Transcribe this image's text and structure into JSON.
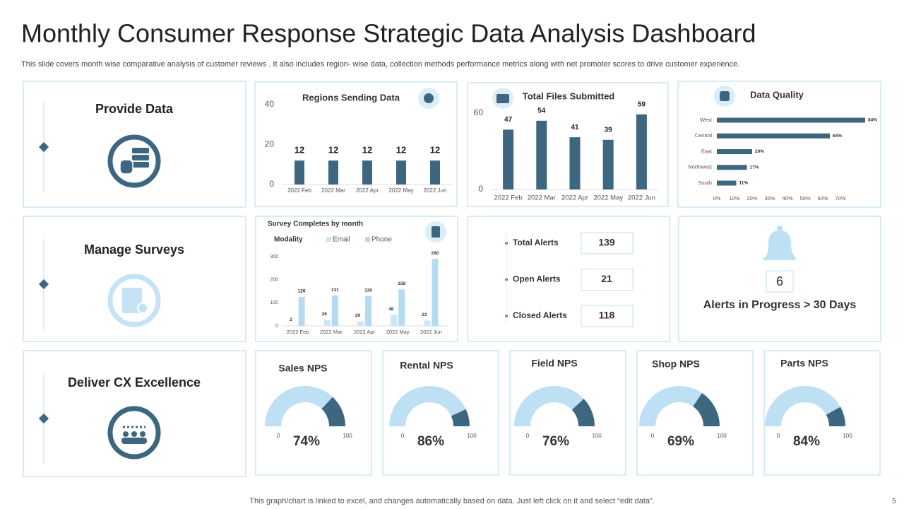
{
  "header": {
    "title": "Monthly Consumer Response Strategic Data Analysis Dashboard",
    "subtitle": "This slide covers month wise comparative analysis of customer reviews . It also includes region- wise data, collection methods performance metrics along with net promoter scores to drive customer experience."
  },
  "sections": [
    "Provide Data",
    "Manage Surveys",
    "Deliver CX Excellence"
  ],
  "chart_data": [
    {
      "type": "bar",
      "title": "Regions Sending Data",
      "categories": [
        "2022 Feb",
        "2022 Mar",
        "2022 Apr",
        "2022 May",
        "2022 Jun"
      ],
      "values": [
        12,
        12,
        12,
        12,
        12
      ],
      "color": "#3d6680",
      "ylim": [
        0,
        40
      ],
      "yticks": [
        0,
        20,
        40
      ]
    },
    {
      "type": "bar",
      "title": "Total Files Submitted",
      "categories": [
        "2022 Feb",
        "2022 Mar",
        "2022 Apr",
        "2022 May",
        "2022 Jun"
      ],
      "values": [
        47,
        54,
        41,
        39,
        59
      ],
      "color": "#3d6680",
      "ylim": [
        0,
        60
      ],
      "yticks": [
        0,
        60
      ]
    },
    {
      "type": "hbar",
      "title": "Data Quality",
      "categories": [
        "West",
        "Central",
        "East",
        "Northwest",
        "South"
      ],
      "values": [
        84,
        64,
        20,
        17,
        11
      ],
      "value_labels": [
        "84%",
        "64%",
        "20%",
        "17%",
        "11%"
      ],
      "color": "#3d6680",
      "xlim": [
        0,
        70
      ],
      "xticks": [
        {
          "value": 0,
          "label": "0%"
        },
        {
          "value": 10,
          "label": "10%"
        },
        {
          "value": 20,
          "label": "20%"
        },
        {
          "value": 30,
          "label": "30%"
        },
        {
          "value": 40,
          "label": "40%"
        },
        {
          "value": 50,
          "label": "50%"
        },
        {
          "value": 60,
          "label": "60%"
        },
        {
          "value": 70,
          "label": "70%"
        }
      ]
    },
    {
      "type": "grouped_bar",
      "title": "Survey Completes by month",
      "legend_title": "Modality",
      "categories": [
        "2022 Feb",
        "2022 Mar",
        "2022 Apr",
        "2022 May",
        "2022 Jun"
      ],
      "series": [
        {
          "name": "Email",
          "color": "#c9e6f6",
          "values": [
            2,
            26,
            20,
            48,
            23
          ]
        },
        {
          "name": "Phone",
          "color": "#b3dbf2",
          "values": [
            126,
            131,
            130,
            158,
            290
          ]
        }
      ],
      "ylim": [
        0,
        300
      ],
      "yticks": [
        0,
        100,
        200,
        300
      ]
    },
    {
      "type": "gauge",
      "title": "Sales NPS",
      "value": 74,
      "value_label": "74%",
      "range": [
        0,
        100
      ],
      "color": "#bde0f5"
    },
    {
      "type": "gauge",
      "title": "Rental NPS",
      "value": 86,
      "value_label": "86%",
      "range": [
        0,
        100
      ],
      "color": "#bde0f5"
    },
    {
      "type": "gauge",
      "title": "Field NPS",
      "value": 76,
      "value_label": "76%",
      "range": [
        0,
        100
      ],
      "color": "#bde0f5"
    },
    {
      "type": "gauge",
      "title": "Shop NPS",
      "value": 69,
      "value_label": "69%",
      "range": [
        0,
        100
      ],
      "color": "#bde0f5"
    },
    {
      "type": "gauge",
      "title": "Parts NPS",
      "value": 84,
      "value_label": "84%",
      "range": [
        0,
        100
      ],
      "color": "#bde0f5"
    }
  ],
  "alerts": [
    {
      "label": "Total Alerts",
      "value": 139
    },
    {
      "label": "Open Alerts",
      "value": 21
    },
    {
      "label": "Closed Alerts",
      "value": 118
    }
  ],
  "progress": {
    "value": 6,
    "label": "Alerts in Progress > 30 Days"
  },
  "footer": {
    "note": "This graph/chart is linked to excel,  and changes automatically based on data. Just left click on it and select “edit data”.",
    "page": 5
  }
}
